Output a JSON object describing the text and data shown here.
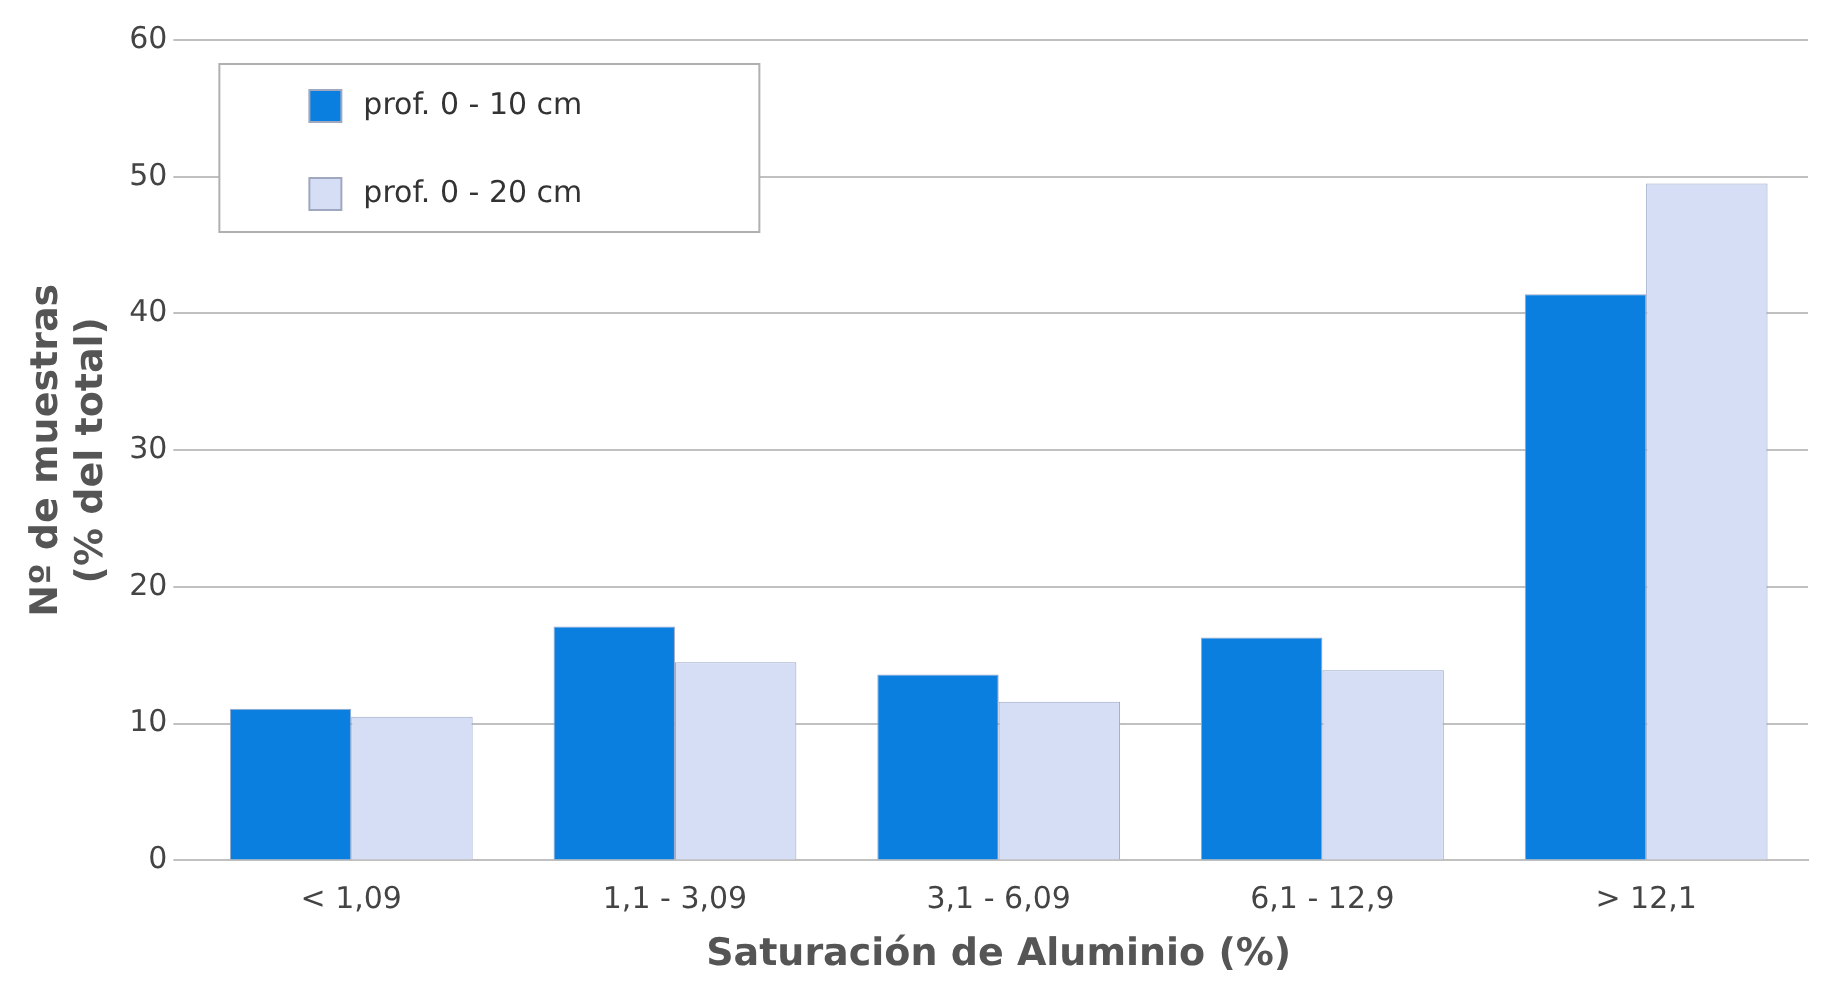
{
  "chart_data": {
    "type": "bar",
    "xlabel": "Saturación de Aluminio (%)",
    "ylabel": "Nº de muestras\n(% del total)",
    "categories": [
      "< 1,09",
      "1,1 - 3,09",
      "3,1 - 6,09",
      "6,1 - 12,9",
      "> 12,1"
    ],
    "series": [
      {
        "name": "prof. 0 - 10 cm",
        "color": "#0a7fe0",
        "values": [
          11.1,
          17.1,
          13.6,
          16.3,
          41.4
        ]
      },
      {
        "name": "prof. 0 - 20 cm",
        "color": "#d5def4",
        "values": [
          10.5,
          14.5,
          11.6,
          13.9,
          49.5
        ]
      }
    ],
    "ylim": [
      0,
      60
    ],
    "yticks": [
      0,
      10,
      20,
      30,
      40,
      50,
      60
    ],
    "grid": "y",
    "legend": "top left"
  }
}
